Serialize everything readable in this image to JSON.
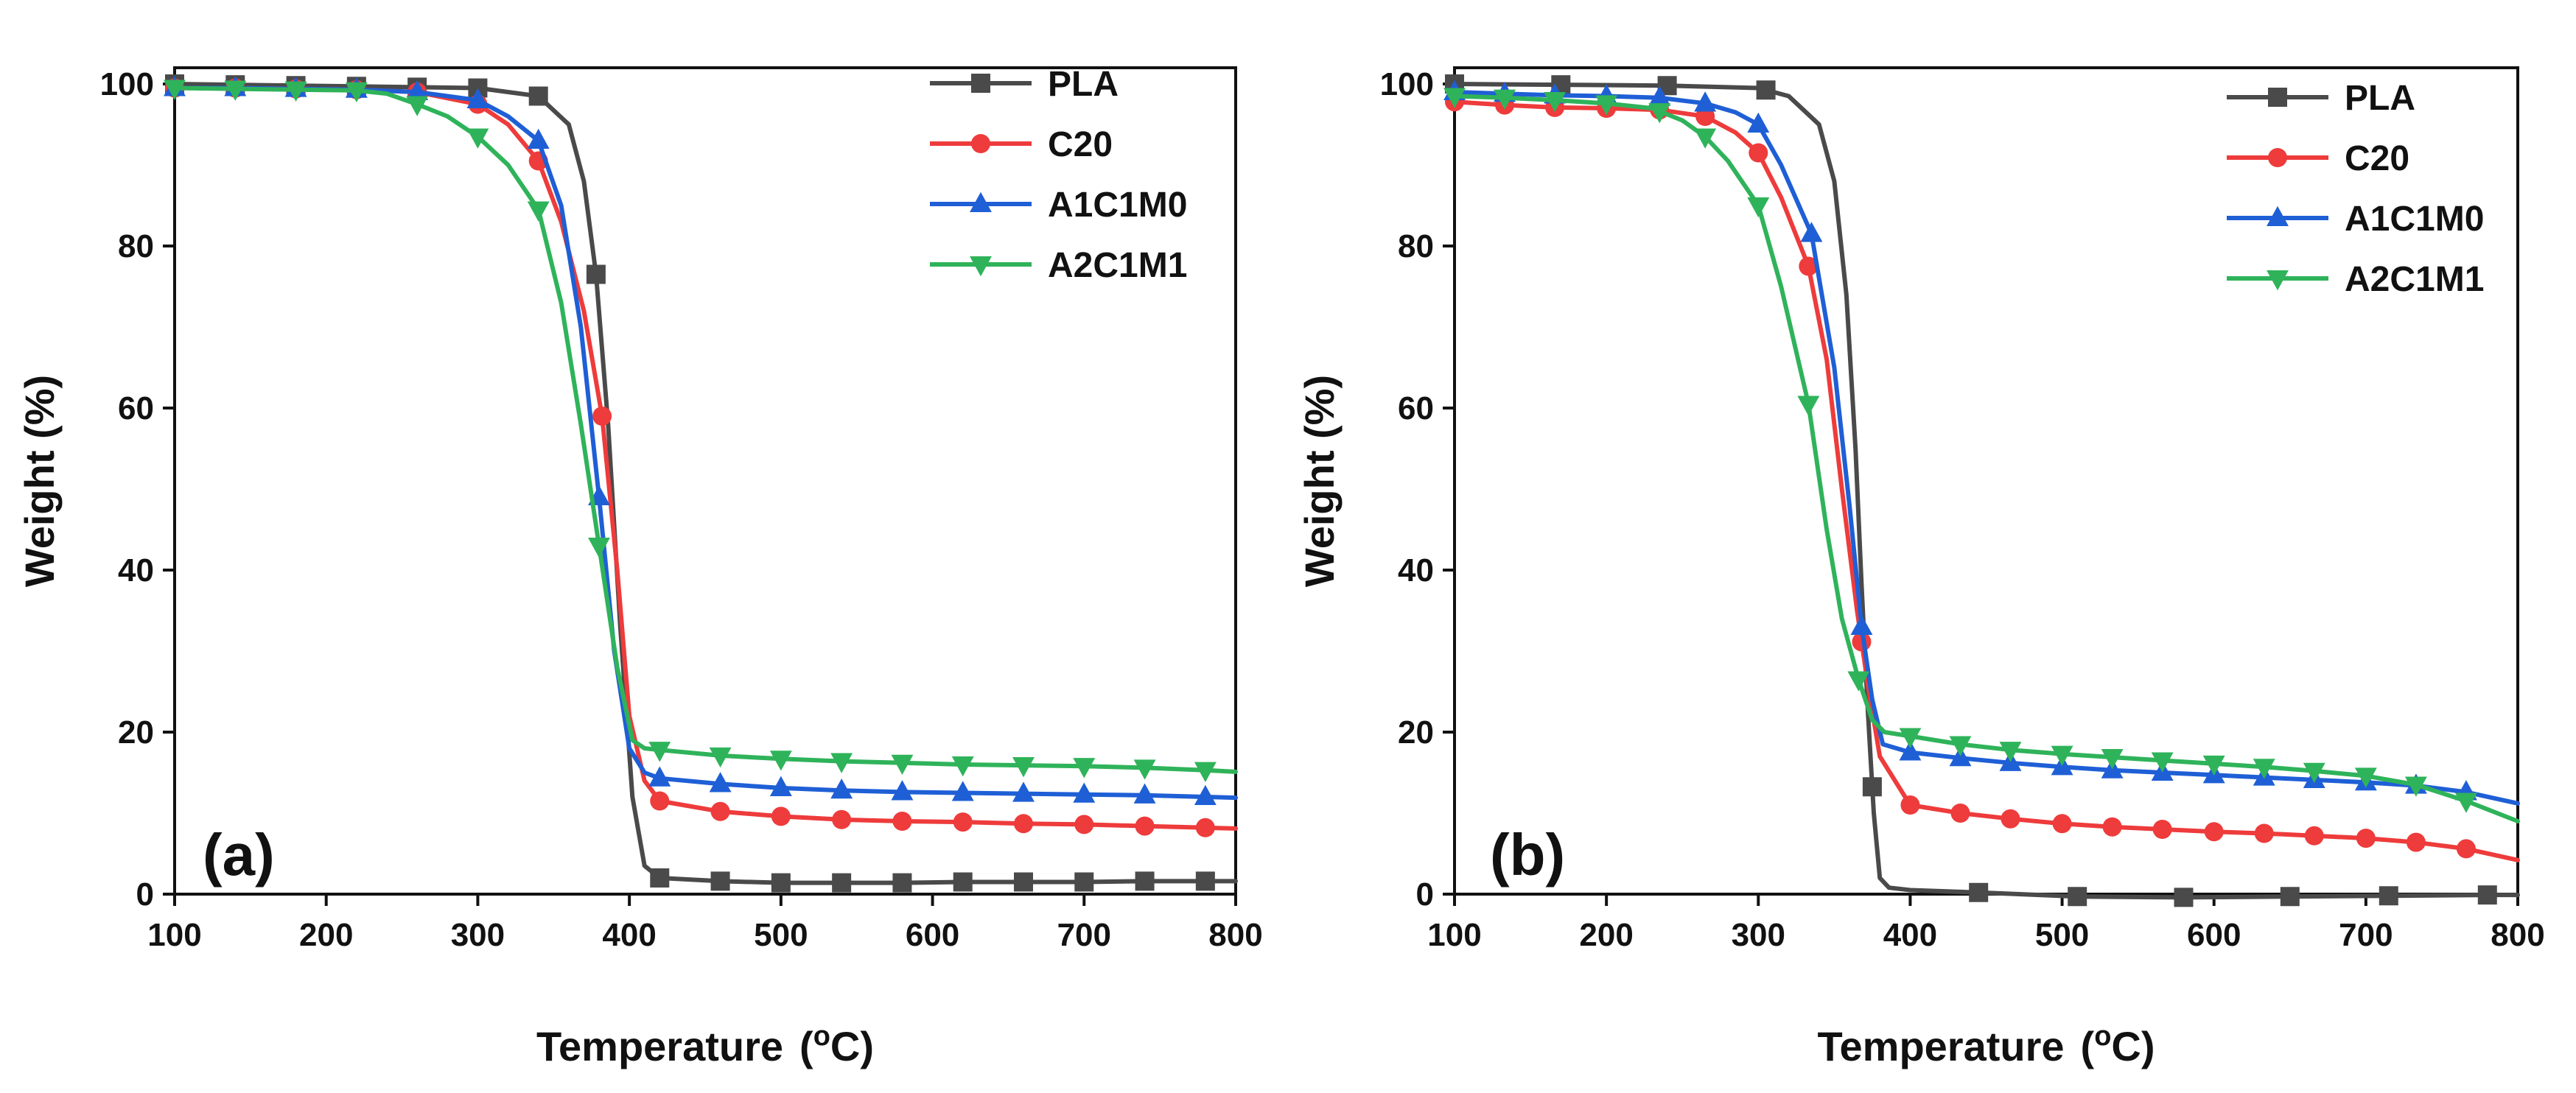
{
  "chart_data": [
    {
      "type": "line",
      "panel_label": "(a)",
      "xlabel": "Temperature",
      "xlabel_unit": "(oC)",
      "ylabel": "Weight (%)",
      "xlim": [
        100,
        800
      ],
      "ylim": [
        0,
        102
      ],
      "xticks": [
        100,
        200,
        300,
        400,
        500,
        600,
        700,
        800
      ],
      "yticks": [
        0,
        20,
        40,
        60,
        80,
        100
      ],
      "grid": false,
      "legend_position": "top-right",
      "series": [
        {
          "name": "PLA",
          "color": "#4a4a4a",
          "marker": "square",
          "x": [
            100,
            140,
            180,
            220,
            260,
            300,
            340,
            360,
            370,
            378,
            386,
            394,
            402,
            410,
            420,
            460,
            500,
            540,
            580,
            620,
            660,
            700,
            740,
            780,
            800
          ],
          "y": [
            100,
            99.9,
            99.8,
            99.7,
            99.6,
            99.5,
            98.5,
            95,
            88,
            76.5,
            58,
            33,
            12,
            3.5,
            2,
            1.6,
            1.4,
            1.4,
            1.4,
            1.5,
            1.5,
            1.5,
            1.6,
            1.6,
            1.6
          ],
          "marker_x": [
            100,
            140,
            180,
            220,
            260,
            300,
            340,
            378,
            420,
            460,
            500,
            540,
            580,
            620,
            660,
            700,
            740,
            780
          ]
        },
        {
          "name": "C20",
          "color": "#ee3b3b",
          "marker": "circle",
          "x": [
            100,
            140,
            180,
            220,
            260,
            300,
            320,
            340,
            355,
            370,
            382,
            392,
            400,
            410,
            420,
            460,
            500,
            540,
            580,
            620,
            660,
            700,
            740,
            780,
            800
          ],
          "y": [
            99.5,
            99.5,
            99.4,
            99.3,
            99,
            97.5,
            95,
            90.5,
            83,
            72,
            59,
            40,
            22,
            14,
            11.5,
            10.2,
            9.6,
            9.2,
            9,
            8.9,
            8.7,
            8.6,
            8.4,
            8.2,
            8.1
          ],
          "marker_x": [
            100,
            140,
            180,
            220,
            260,
            300,
            340,
            382,
            420,
            460,
            500,
            540,
            580,
            620,
            660,
            700,
            740,
            780
          ]
        },
        {
          "name": "A1C1M0",
          "color": "#1f5fd6",
          "marker": "triangle-up",
          "x": [
            100,
            140,
            180,
            220,
            260,
            300,
            320,
            340,
            355,
            368,
            380,
            390,
            400,
            410,
            420,
            460,
            500,
            540,
            580,
            620,
            660,
            700,
            740,
            780,
            800
          ],
          "y": [
            99.5,
            99.5,
            99.4,
            99.3,
            99,
            98,
            96,
            93,
            85,
            70,
            49,
            30,
            18,
            15,
            14.3,
            13.6,
            13.1,
            12.8,
            12.6,
            12.5,
            12.4,
            12.3,
            12.2,
            12.0,
            11.9
          ],
          "marker_x": [
            100,
            140,
            180,
            220,
            260,
            300,
            340,
            380,
            420,
            460,
            500,
            540,
            580,
            620,
            660,
            700,
            740,
            780
          ]
        },
        {
          "name": "A2C1M1",
          "color": "#2fb35a",
          "marker": "triangle-down",
          "x": [
            100,
            140,
            180,
            220,
            240,
            260,
            280,
            300,
            320,
            340,
            355,
            368,
            380,
            392,
            402,
            410,
            420,
            460,
            500,
            540,
            580,
            620,
            660,
            700,
            740,
            780,
            800
          ],
          "y": [
            99.5,
            99.4,
            99.3,
            99.2,
            98.8,
            97.5,
            96,
            93.5,
            90,
            84.5,
            73,
            58,
            43,
            28,
            19,
            18,
            17.8,
            17.1,
            16.7,
            16.4,
            16.2,
            16.0,
            15.9,
            15.8,
            15.6,
            15.3,
            15.1
          ],
          "marker_x": [
            100,
            140,
            180,
            220,
            260,
            300,
            340,
            380,
            420,
            460,
            500,
            540,
            580,
            620,
            660,
            700,
            740,
            780
          ]
        }
      ]
    },
    {
      "type": "line",
      "panel_label": "(b)",
      "xlabel": "Temperature",
      "xlabel_unit": "(oC)",
      "ylabel": "Weight (%)",
      "xlim": [
        100,
        800
      ],
      "ylim": [
        0,
        102
      ],
      "xticks": [
        100,
        200,
        300,
        400,
        500,
        600,
        700,
        800
      ],
      "yticks": [
        0,
        20,
        40,
        60,
        80,
        100
      ],
      "grid": false,
      "legend_position": "top-right",
      "series": [
        {
          "name": "PLA",
          "color": "#4a4a4a",
          "marker": "square",
          "x": [
            100,
            170,
            240,
            300,
            320,
            340,
            350,
            358,
            364,
            368,
            372,
            376,
            380,
            386,
            400,
            445,
            510,
            580,
            650,
            715,
            780,
            800
          ],
          "y": [
            100,
            99.9,
            99.8,
            99.5,
            98.5,
            95,
            88,
            74,
            55,
            38,
            23,
            10,
            2,
            0.8,
            0.5,
            0.2,
            -0.3,
            -0.4,
            -0.3,
            -0.2,
            -0.1,
            -0.1
          ],
          "marker_x": [
            100,
            170,
            240,
            305,
            375,
            445,
            510,
            580,
            650,
            715,
            780
          ]
        },
        {
          "name": "C20",
          "color": "#ee3b3b",
          "marker": "circle",
          "x": [
            100,
            133,
            166,
            200,
            235,
            265,
            285,
            300,
            315,
            333,
            345,
            355,
            365,
            372,
            380,
            400,
            433,
            466,
            500,
            533,
            566,
            600,
            633,
            666,
            700,
            733,
            766,
            800
          ],
          "y": [
            97.8,
            97.4,
            97.1,
            97,
            96.8,
            96,
            94,
            91.5,
            86,
            77.5,
            66,
            50,
            35,
            26,
            17,
            11,
            10,
            9.3,
            8.7,
            8.3,
            8.0,
            7.7,
            7.5,
            7.2,
            6.9,
            6.4,
            5.6,
            4.2
          ],
          "marker_x": [
            100,
            133,
            166,
            200,
            235,
            265,
            300,
            333,
            368,
            400,
            433,
            466,
            500,
            533,
            566,
            600,
            633,
            666,
            700,
            733,
            766
          ]
        },
        {
          "name": "A1C1M0",
          "color": "#1f5fd6",
          "marker": "triangle-up",
          "x": [
            100,
            133,
            166,
            200,
            235,
            265,
            285,
            300,
            315,
            335,
            350,
            360,
            368,
            375,
            382,
            400,
            433,
            466,
            500,
            533,
            566,
            600,
            633,
            666,
            700,
            733,
            766,
            800
          ],
          "y": [
            99,
            98.8,
            98.6,
            98.5,
            98.3,
            97.6,
            96.5,
            95,
            90,
            81.5,
            65,
            48,
            33,
            24,
            18.5,
            17.5,
            16.8,
            16.2,
            15.7,
            15.3,
            15.0,
            14.7,
            14.4,
            14.1,
            13.8,
            13.4,
            12.6,
            11.2
          ],
          "marker_x": [
            100,
            133,
            166,
            200,
            235,
            265,
            300,
            335,
            368,
            400,
            433,
            466,
            500,
            533,
            566,
            600,
            633,
            666,
            700,
            733,
            766
          ]
        },
        {
          "name": "A2C1M1",
          "color": "#2fb35a",
          "marker": "triangle-down",
          "x": [
            100,
            133,
            166,
            200,
            230,
            250,
            265,
            280,
            300,
            315,
            333,
            345,
            355,
            366,
            375,
            383,
            400,
            433,
            466,
            500,
            533,
            566,
            600,
            633,
            666,
            700,
            733,
            766,
            800
          ],
          "y": [
            98.5,
            98.3,
            98,
            97.6,
            97,
            95.5,
            93.5,
            90.5,
            85,
            75,
            60.5,
            45,
            34,
            26.5,
            21.5,
            20,
            19.5,
            18.5,
            17.8,
            17.3,
            16.9,
            16.5,
            16.1,
            15.7,
            15.2,
            14.6,
            13.5,
            11.5,
            9
          ],
          "marker_x": [
            100,
            133,
            166,
            200,
            235,
            265,
            300,
            333,
            366,
            400,
            433,
            466,
            500,
            533,
            566,
            600,
            633,
            666,
            700,
            733,
            766
          ]
        }
      ]
    }
  ]
}
